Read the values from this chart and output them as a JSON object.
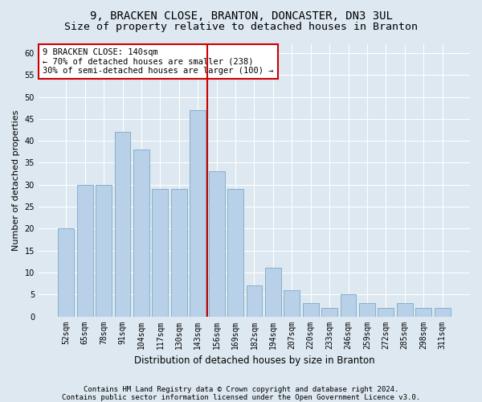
{
  "title1": "9, BRACKEN CLOSE, BRANTON, DONCASTER, DN3 3UL",
  "title2": "Size of property relative to detached houses in Branton",
  "xlabel": "Distribution of detached houses by size in Branton",
  "ylabel": "Number of detached properties",
  "categories": [
    "52sqm",
    "65sqm",
    "78sqm",
    "91sqm",
    "104sqm",
    "117sqm",
    "130sqm",
    "143sqm",
    "156sqm",
    "169sqm",
    "182sqm",
    "194sqm",
    "207sqm",
    "220sqm",
    "233sqm",
    "246sqm",
    "259sqm",
    "272sqm",
    "285sqm",
    "298sqm",
    "311sqm"
  ],
  "values": [
    20,
    30,
    30,
    42,
    38,
    29,
    29,
    47,
    33,
    29,
    7,
    11,
    6,
    3,
    2,
    5,
    3,
    2,
    3,
    2,
    2
  ],
  "bar_color": "#b8d0e8",
  "bar_edge_color": "#7aaac8",
  "vline_color": "#cc0000",
  "annotation_text": "9 BRACKEN CLOSE: 140sqm\n← 70% of detached houses are smaller (238)\n30% of semi-detached houses are larger (100) →",
  "annotation_box_facecolor": "#ffffff",
  "annotation_box_edgecolor": "#cc0000",
  "bg_color": "#dde8f0",
  "plot_bg_color": "#dde8f0",
  "ylim": [
    0,
    62
  ],
  "yticks": [
    0,
    5,
    10,
    15,
    20,
    25,
    30,
    35,
    40,
    45,
    50,
    55,
    60
  ],
  "footer1": "Contains HM Land Registry data © Crown copyright and database right 2024.",
  "footer2": "Contains public sector information licensed under the Open Government Licence v3.0.",
  "title1_fontsize": 10,
  "title2_fontsize": 9.5,
  "xlabel_fontsize": 8.5,
  "ylabel_fontsize": 8,
  "annot_fontsize": 7.5,
  "tick_fontsize": 7,
  "footer_fontsize": 6.5
}
